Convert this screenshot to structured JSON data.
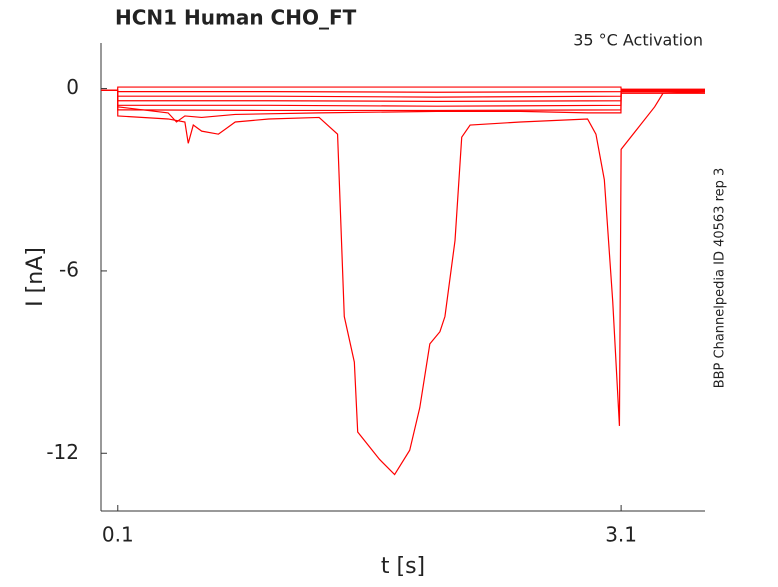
{
  "chart_data": {
    "type": "line",
    "title": "HCN1  Human  CHO_FT",
    "annotation": "35 °C  Activation",
    "side_note": "BBP Channelpedia ID 40563 rep 3",
    "x_label": "t [s]",
    "y_label": "I [nA]",
    "xlim": [
      0,
      3.6
    ],
    "ylim": [
      -13.9,
      1.5
    ],
    "xticks": [
      0.1,
      3.1
    ],
    "yticks": [
      0,
      -6,
      -12
    ],
    "grid": false,
    "color": "#ff0000",
    "x": [
      0,
      0.099,
      0.1,
      1.0,
      2.0,
      3.099,
      3.1,
      3.6
    ],
    "series": [
      {
        "color": "#ff0000",
        "values": [
          -0.05,
          -0.05,
          0.05,
          0.05,
          0.05,
          0.05,
          -0.02,
          -0.02
        ]
      },
      {
        "color": "#ff0000",
        "values": [
          -0.05,
          -0.05,
          -0.1,
          -0.1,
          -0.12,
          -0.1,
          -0.03,
          -0.03
        ]
      },
      {
        "color": "#ff0000",
        "values": [
          -0.05,
          -0.05,
          -0.25,
          -0.25,
          -0.28,
          -0.25,
          -0.05,
          -0.05
        ]
      },
      {
        "color": "#ff0000",
        "values": [
          -0.05,
          -0.05,
          -0.4,
          -0.4,
          -0.42,
          -0.4,
          -0.08,
          -0.08
        ]
      },
      {
        "color": "#ff0000",
        "values": [
          -0.05,
          -0.05,
          -0.55,
          -0.55,
          -0.58,
          -0.55,
          -0.1,
          -0.1
        ]
      },
      {
        "color": "#ff0000",
        "values": [
          -0.05,
          -0.05,
          -0.7,
          -0.72,
          -0.72,
          -0.7,
          -0.15,
          -0.15
        ]
      },
      {
        "color": "#ff0000",
        "x": [
          0,
          0.099,
          0.1,
          0.4,
          0.45,
          0.5,
          0.6,
          0.8,
          1.3,
          2.0,
          2.5,
          2.9,
          3.099,
          3.1,
          3.6
        ],
        "values": [
          -0.05,
          -0.05,
          -0.6,
          -0.8,
          -1.1,
          -0.9,
          -0.95,
          -0.85,
          -0.8,
          -0.75,
          -0.75,
          -0.8,
          -0.8,
          -0.15,
          -0.15
        ]
      },
      {
        "color": "#ff0000",
        "x": [
          0,
          0.099,
          0.1,
          0.4,
          0.5,
          0.52,
          0.55,
          0.6,
          0.7,
          0.8,
          1.0,
          1.3,
          1.41,
          1.45,
          1.51,
          1.53,
          1.66,
          1.75,
          1.84,
          1.9,
          1.96,
          2.02,
          2.05,
          2.11,
          2.15,
          2.2,
          2.5,
          2.9,
          2.95,
          3.0,
          3.05,
          3.09,
          3.1,
          3.2,
          3.3,
          3.35,
          3.6
        ],
        "values": [
          -0.05,
          -0.05,
          -0.9,
          -1.0,
          -1.1,
          -1.8,
          -1.2,
          -1.4,
          -1.5,
          -1.1,
          -1.0,
          -0.95,
          -1.5,
          -7.5,
          -9.0,
          -11.3,
          -12.2,
          -12.7,
          -11.9,
          -10.5,
          -8.4,
          -8.0,
          -7.5,
          -5.0,
          -1.6,
          -1.2,
          -1.1,
          -1.0,
          -1.5,
          -3.0,
          -7.0,
          -11.1,
          -2.0,
          -1.3,
          -0.6,
          -0.15,
          -0.1
        ]
      }
    ]
  }
}
